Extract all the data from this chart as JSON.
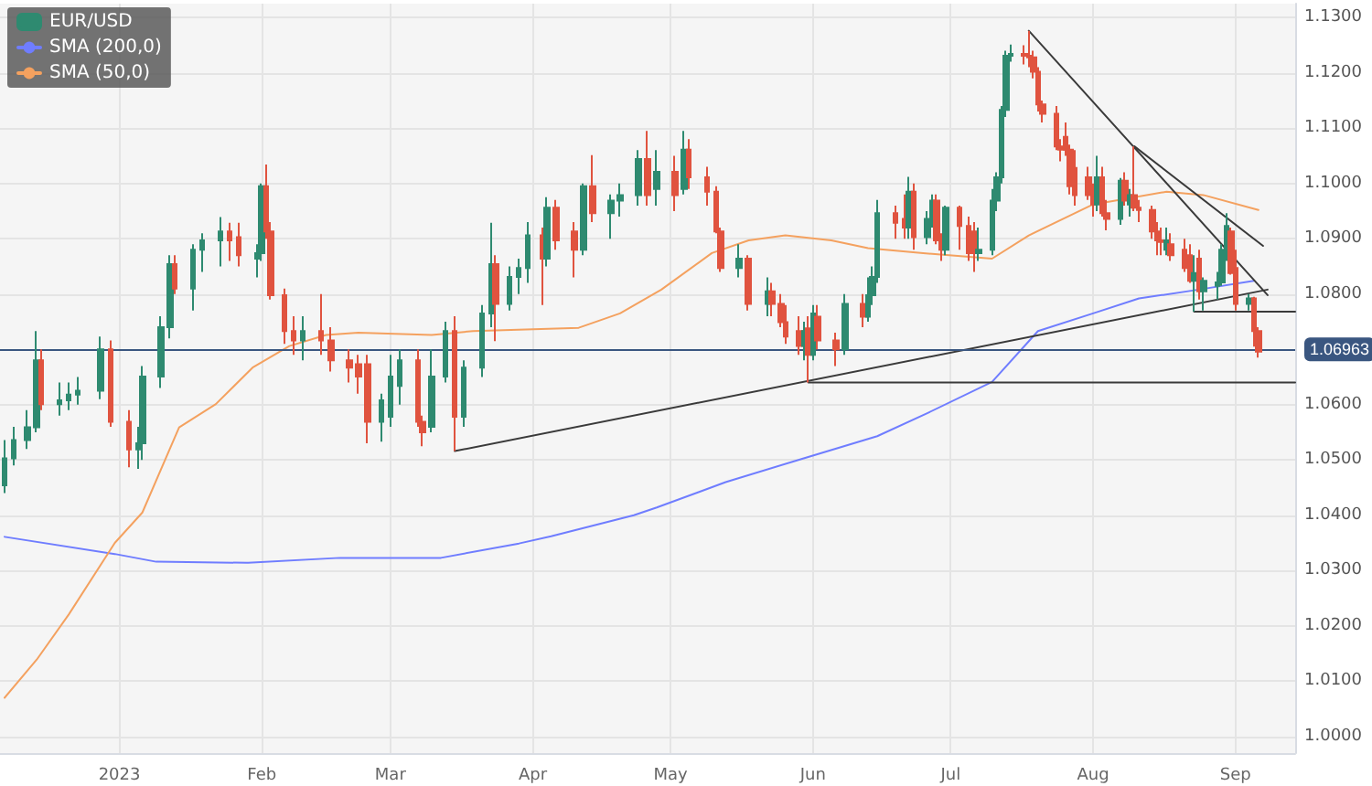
{
  "chart_data": {
    "type": "candlestick",
    "legend": "top left",
    "grid": true,
    "marker": "none",
    "line_style": "solid",
    "xlim": [
      "2022-12-06",
      "2023-09-14"
    ],
    "xticks": [
      {
        "value": "2023-01-01",
        "label": "2023"
      },
      {
        "value": "2023-02-01",
        "label": "Feb"
      },
      {
        "value": "2023-03-01",
        "label": "Mar"
      },
      {
        "value": "2023-04-01",
        "label": "Apr"
      },
      {
        "value": "2023-05-01",
        "label": "May"
      },
      {
        "value": "2023-06-01",
        "label": "Jun"
      },
      {
        "value": "2023-07-01",
        "label": "Jul"
      },
      {
        "value": "2023-08-01",
        "label": "Aug"
      },
      {
        "value": "2023-09-01",
        "label": "Sep"
      }
    ],
    "ylim": [
      0.997,
      1.1325
    ],
    "yticks": [
      {
        "value": 1.0,
        "label": "1.0000"
      },
      {
        "value": 1.01,
        "label": "1.0100"
      },
      {
        "value": 1.02,
        "label": "1.0200"
      },
      {
        "value": 1.03,
        "label": "1.0300"
      },
      {
        "value": 1.04,
        "label": "1.0400"
      },
      {
        "value": 1.05,
        "label": "1.0500"
      },
      {
        "value": 1.06,
        "label": "1.0600"
      },
      {
        "value": 1.07,
        "label": null
      },
      {
        "value": 1.08,
        "label": "1.0800"
      },
      {
        "value": 1.09,
        "label": "1.0900"
      },
      {
        "value": 1.1,
        "label": "1.1000"
      },
      {
        "value": 1.11,
        "label": "1.1100"
      },
      {
        "value": 1.12,
        "label": "1.1200"
      },
      {
        "value": 1.13,
        "label": "1.1300"
      }
    ],
    "ref_lines": [
      {
        "axis": "y",
        "value": 1.06963,
        "label": "1.06963",
        "color": "#3a5680"
      }
    ],
    "x": [
      "2022-12-07",
      "2022-12-09",
      "2022-12-12",
      "2022-12-14",
      "2022-12-15",
      "2022-12-19",
      "2022-12-21",
      "2022-12-23",
      "2022-12-28",
      "2022-12-30",
      "2023-01-03",
      "2023-01-05",
      "2023-01-06",
      "2023-01-10",
      "2023-01-12",
      "2023-01-13",
      "2023-01-17",
      "2023-01-19",
      "2023-01-23",
      "2023-01-25",
      "2023-01-27",
      "2023-01-31",
      "2023-02-01",
      "2023-02-02",
      "2023-02-03",
      "2023-02-06",
      "2023-02-08",
      "2023-02-10",
      "2023-02-14",
      "2023-02-16",
      "2023-02-20",
      "2023-02-22",
      "2023-02-24",
      "2023-02-27",
      "2023-03-01",
      "2023-03-03",
      "2023-03-07",
      "2023-03-08",
      "2023-03-10",
      "2023-03-13",
      "2023-03-15",
      "2023-03-17",
      "2023-03-21",
      "2023-03-23",
      "2023-03-24",
      "2023-03-27",
      "2023-03-29",
      "2023-03-31",
      "2023-04-03",
      "2023-04-04",
      "2023-04-06",
      "2023-04-10",
      "2023-04-12",
      "2023-04-14",
      "2023-04-18",
      "2023-04-20",
      "2023-04-24",
      "2023-04-26",
      "2023-04-28",
      "2023-05-02",
      "2023-05-04",
      "2023-05-05",
      "2023-05-09",
      "2023-05-11",
      "2023-05-12",
      "2023-05-16",
      "2023-05-18",
      "2023-05-22",
      "2023-05-23",
      "2023-05-25",
      "2023-05-26",
      "2023-05-29",
      "2023-05-30",
      "2023-05-31",
      "2023-06-01",
      "2023-06-02",
      "2023-06-06",
      "2023-06-08",
      "2023-06-12",
      "2023-06-13",
      "2023-06-14",
      "2023-06-15",
      "2023-06-19",
      "2023-06-21",
      "2023-06-22",
      "2023-06-23",
      "2023-06-26",
      "2023-06-27",
      "2023-06-28",
      "2023-06-29",
      "2023-06-30",
      "2023-07-03",
      "2023-07-05",
      "2023-07-06",
      "2023-07-07",
      "2023-07-10",
      "2023-07-11",
      "2023-07-12",
      "2023-07-13",
      "2023-07-14",
      "2023-07-17",
      "2023-07-18",
      "2023-07-19",
      "2023-07-20",
      "2023-07-21",
      "2023-07-24",
      "2023-07-25",
      "2023-07-26",
      "2023-07-27",
      "2023-07-28",
      "2023-07-31",
      "2023-08-01",
      "2023-08-02",
      "2023-08-03",
      "2023-08-04",
      "2023-08-07",
      "2023-08-08",
      "2023-08-09",
      "2023-08-10",
      "2023-08-11",
      "2023-08-14",
      "2023-08-15",
      "2023-08-16",
      "2023-08-17",
      "2023-08-18",
      "2023-08-21",
      "2023-08-22",
      "2023-08-23",
      "2023-08-24",
      "2023-08-25",
      "2023-08-28",
      "2023-08-29",
      "2023-08-30",
      "2023-08-31",
      "2023-09-01",
      "2023-09-04",
      "2023-09-05",
      "2023-09-06"
    ],
    "series": [
      {
        "name": "EUR/USD",
        "ohlc": [
          [
            1.0454,
            1.0536,
            1.044,
            1.0503
          ],
          [
            1.0503,
            1.056,
            1.049,
            1.0536
          ],
          [
            1.0536,
            1.059,
            1.052,
            1.0559
          ],
          [
            1.0559,
            1.0733,
            1.055,
            1.068
          ],
          [
            1.068,
            1.07,
            1.059,
            1.0601
          ],
          [
            1.0601,
            1.064,
            1.058,
            1.0608
          ],
          [
            1.0608,
            1.064,
            1.059,
            1.0618
          ],
          [
            1.0618,
            1.065,
            1.06,
            1.0625
          ],
          [
            1.0625,
            1.0723,
            1.061,
            1.07
          ],
          [
            1.07,
            1.0716,
            1.056,
            1.0569
          ],
          [
            1.0569,
            1.059,
            1.0487,
            1.0519
          ],
          [
            1.0519,
            1.056,
            1.0484,
            1.053
          ],
          [
            1.053,
            1.067,
            1.05,
            1.0651
          ],
          [
            1.0651,
            1.076,
            1.063,
            1.074
          ],
          [
            1.074,
            1.087,
            1.072,
            1.0854
          ],
          [
            1.0854,
            1.087,
            1.08,
            1.081
          ],
          [
            1.081,
            1.089,
            1.077,
            1.088
          ],
          [
            1.088,
            1.091,
            1.084,
            1.0897
          ],
          [
            1.0897,
            1.0939,
            1.085,
            1.0913
          ],
          [
            1.0913,
            1.0929,
            1.086,
            1.0897
          ],
          [
            1.0903,
            1.0929,
            1.085,
            1.087
          ],
          [
            1.0864,
            1.089,
            1.083,
            1.0874
          ],
          [
            1.0874,
            1.1,
            1.086,
            1.0995
          ],
          [
            1.0995,
            1.1034,
            1.09,
            1.0913
          ],
          [
            1.0913,
            1.093,
            1.079,
            1.0798
          ],
          [
            1.0798,
            1.081,
            1.071,
            1.0733
          ],
          [
            1.0733,
            1.076,
            1.069,
            1.0716
          ],
          [
            1.0716,
            1.076,
            1.068,
            1.0733
          ],
          [
            1.0733,
            1.08,
            1.069,
            1.0716
          ],
          [
            1.0716,
            1.074,
            1.066,
            1.068
          ],
          [
            1.068,
            1.07,
            1.064,
            1.0667
          ],
          [
            1.0673,
            1.069,
            1.062,
            1.0651
          ],
          [
            1.0673,
            1.069,
            1.053,
            1.0569
          ],
          [
            1.0569,
            1.062,
            1.0533,
            1.0608
          ],
          [
            1.0578,
            1.069,
            1.056,
            1.0651
          ],
          [
            1.0634,
            1.07,
            1.06,
            1.068
          ],
          [
            1.068,
            1.07,
            1.056,
            1.0569
          ],
          [
            1.0569,
            1.058,
            1.0525,
            1.055
          ],
          [
            1.056,
            1.07,
            1.055,
            1.0651
          ],
          [
            1.0651,
            1.075,
            1.064,
            1.0733
          ],
          [
            1.0733,
            1.076,
            1.0516,
            1.0578
          ],
          [
            1.0578,
            1.068,
            1.056,
            1.0667
          ],
          [
            1.0667,
            1.078,
            1.065,
            1.0765
          ],
          [
            1.0765,
            1.0929,
            1.074,
            1.0854
          ],
          [
            1.0854,
            1.087,
            1.0715,
            1.0782
          ],
          [
            1.0782,
            1.085,
            1.077,
            1.0831
          ],
          [
            1.0831,
            1.0864,
            1.08,
            1.0847
          ],
          [
            1.0847,
            1.093,
            1.082,
            1.0906
          ],
          [
            1.0906,
            1.092,
            1.078,
            1.0864
          ],
          [
            1.0864,
            1.0975,
            1.085,
            1.0956
          ],
          [
            1.0956,
            1.097,
            1.088,
            1.0897
          ],
          [
            1.0913,
            1.093,
            1.083,
            1.088
          ],
          [
            1.088,
            1.1,
            1.087,
            1.0995
          ],
          [
            1.0995,
            1.1051,
            1.093,
            1.0946
          ],
          [
            1.0946,
            1.098,
            1.09,
            1.0969
          ],
          [
            1.0969,
            1.1,
            1.094,
            1.0979
          ],
          [
            1.0979,
            1.106,
            1.096,
            1.1044
          ],
          [
            1.1044,
            1.1095,
            1.096,
            1.0979
          ],
          [
            1.099,
            1.106,
            1.096,
            1.1021
          ],
          [
            1.1021,
            1.105,
            1.095,
            1.0979
          ],
          [
            1.099,
            1.1095,
            1.098,
            1.1061
          ],
          [
            1.1061,
            1.108,
            1.099,
            1.1011
          ],
          [
            1.1011,
            1.103,
            1.096,
            1.0985
          ],
          [
            1.0985,
            1.0995,
            1.091,
            1.0913
          ],
          [
            1.0913,
            1.092,
            1.084,
            1.0847
          ],
          [
            1.0847,
            1.089,
            1.083,
            1.0864
          ],
          [
            1.0864,
            1.087,
            1.077,
            1.0782
          ],
          [
            1.0782,
            1.083,
            1.076,
            1.0805
          ],
          [
            1.0805,
            1.082,
            1.076,
            1.0782
          ],
          [
            1.0782,
            1.08,
            1.074,
            1.0749
          ],
          [
            1.0749,
            1.078,
            1.071,
            1.0723
          ],
          [
            1.0733,
            1.076,
            1.069,
            1.0706
          ],
          [
            1.0706,
            1.075,
            1.068,
            1.0733
          ],
          [
            1.0738,
            1.076,
            1.064,
            1.069
          ],
          [
            1.069,
            1.078,
            1.068,
            1.0765
          ],
          [
            1.0759,
            1.078,
            1.07,
            1.0716
          ],
          [
            1.0716,
            1.073,
            1.067,
            1.07
          ],
          [
            1.07,
            1.08,
            1.069,
            1.0782
          ],
          [
            1.0782,
            1.08,
            1.074,
            1.0759
          ],
          [
            1.0759,
            1.083,
            1.075,
            1.0798
          ],
          [
            1.0798,
            1.085,
            1.078,
            1.0831
          ],
          [
            1.0831,
            1.097,
            1.082,
            1.0946
          ],
          [
            1.0946,
            1.096,
            1.09,
            1.0929
          ],
          [
            1.0936,
            1.098,
            1.09,
            1.092
          ],
          [
            1.092,
            1.1012,
            1.09,
            1.0985
          ],
          [
            1.0985,
            1.1,
            1.088,
            1.0903
          ],
          [
            1.0903,
            1.095,
            1.089,
            1.0936
          ],
          [
            1.0936,
            1.098,
            1.092,
            1.0969
          ],
          [
            1.0969,
            1.098,
            1.089,
            1.0897
          ],
          [
            1.0897,
            1.091,
            1.086,
            1.088
          ],
          [
            1.088,
            1.096,
            1.087,
            1.0956
          ],
          [
            1.0956,
            1.096,
            1.088,
            1.0923
          ],
          [
            1.0923,
            1.094,
            1.086,
            1.0874
          ],
          [
            1.0913,
            1.093,
            1.084,
            1.0874
          ],
          [
            1.0874,
            1.092,
            1.086,
            1.088
          ],
          [
            1.088,
            1.099,
            1.087,
            1.0969
          ],
          [
            1.0969,
            1.102,
            1.095,
            1.1011
          ],
          [
            1.1011,
            1.114,
            1.1,
            1.1133
          ],
          [
            1.1133,
            1.124,
            1.112,
            1.1231
          ],
          [
            1.1231,
            1.1251,
            1.122,
            1.1234
          ],
          [
            1.1234,
            1.125,
            1.1215,
            1.1231
          ],
          [
            1.1231,
            1.1276,
            1.121,
            1.1228
          ],
          [
            1.1228,
            1.124,
            1.119,
            1.1202
          ],
          [
            1.1202,
            1.121,
            1.113,
            1.1143
          ],
          [
            1.1143,
            1.115,
            1.111,
            1.1126
          ],
          [
            1.1126,
            1.114,
            1.106,
            1.1067
          ],
          [
            1.1067,
            1.108,
            1.104,
            1.1061
          ],
          [
            1.1084,
            1.111,
            1.105,
            1.1061
          ],
          [
            1.1061,
            1.107,
            1.098,
            1.0995
          ],
          [
            1.1028,
            1.106,
            1.096,
            1.0979
          ],
          [
            1.1011,
            1.103,
            1.097,
            1.0979
          ],
          [
            1.0979,
            1.1,
            1.094,
            1.0962
          ],
          [
            1.0962,
            1.105,
            1.095,
            1.1011
          ],
          [
            1.1011,
            1.103,
            1.094,
            1.0946
          ],
          [
            1.0946,
            1.097,
            1.0915,
            1.0936
          ],
          [
            1.0936,
            1.101,
            1.0925,
            1.1005
          ],
          [
            1.1005,
            1.102,
            1.096,
            1.0969
          ],
          [
            1.0962,
            1.099,
            1.094,
            1.0979
          ],
          [
            1.0979,
            1.1067,
            1.095,
            1.0956
          ],
          [
            1.0956,
            1.097,
            1.093,
            1.0952
          ],
          [
            1.0952,
            1.096,
            1.09,
            1.0913
          ],
          [
            1.0913,
            1.093,
            1.087,
            1.0897
          ],
          [
            1.0897,
            1.092,
            1.087,
            1.0894
          ],
          [
            1.088,
            1.092,
            1.087,
            1.0897
          ],
          [
            1.089,
            1.091,
            1.086,
            1.087
          ],
          [
            1.088,
            1.09,
            1.084,
            1.0847
          ],
          [
            1.087,
            1.089,
            1.082,
            1.0824
          ],
          [
            1.0824,
            1.087,
            1.0768,
            1.0838
          ],
          [
            1.0864,
            1.088,
            1.079,
            1.0805
          ],
          [
            1.0805,
            1.083,
            1.077,
            1.0824
          ],
          [
            1.0815,
            1.084,
            1.079,
            1.0821
          ],
          [
            1.0821,
            1.089,
            1.0815,
            1.088
          ],
          [
            1.088,
            1.0946,
            1.086,
            1.0923
          ],
          [
            1.0913,
            1.092,
            1.0835,
            1.0838
          ],
          [
            1.0847,
            1.088,
            1.077,
            1.0782
          ],
          [
            1.0782,
            1.08,
            1.077,
            1.0792
          ],
          [
            1.0792,
            1.0795,
            1.0705,
            1.0733
          ],
          [
            1.0733,
            1.074,
            1.0685,
            1.0696
          ]
        ]
      },
      {
        "type": "line",
        "name": "SMA (200,0)",
        "color": "#6f7dff",
        "x": [
          "2022-12-07",
          "2022-12-31",
          "2023-01-09",
          "2023-01-29",
          "2023-02-18",
          "2023-03-12",
          "2023-03-29",
          "2023-04-05",
          "2023-04-23",
          "2023-04-28",
          "2023-05-13",
          "2023-05-30",
          "2023-06-15",
          "2023-06-26",
          "2023-07-10",
          "2023-07-20",
          "2023-08-01",
          "2023-08-11",
          "2023-08-24",
          "2023-09-05"
        ],
        "values": [
          1.0361,
          1.033,
          1.0316,
          1.0314,
          1.0323,
          1.0323,
          1.0349,
          1.0362,
          1.04,
          1.0414,
          1.046,
          1.0503,
          1.0543,
          1.0585,
          1.0641,
          1.0733,
          1.0765,
          1.0792,
          1.0808,
          1.0824
        ]
      },
      {
        "type": "line",
        "name": "SMA (50,0)",
        "color": "#f4a15f",
        "x": [
          "2022-12-07",
          "2022-12-14",
          "2022-12-21",
          "2022-12-31",
          "2023-01-06",
          "2023-01-14",
          "2023-01-22",
          "2023-01-30",
          "2023-02-07",
          "2023-02-15",
          "2023-02-22",
          "2023-03-10",
          "2023-03-19",
          "2023-04-11",
          "2023-04-20",
          "2023-04-29",
          "2023-05-10",
          "2023-05-18",
          "2023-05-26",
          "2023-06-05",
          "2023-06-13",
          "2023-06-25",
          "2023-07-10",
          "2023-07-18",
          "2023-08-01",
          "2023-08-17",
          "2023-08-25",
          "2023-09-06"
        ],
        "values": [
          1.007,
          1.0139,
          1.0221,
          1.035,
          1.0405,
          1.0559,
          1.0601,
          1.0667,
          1.0706,
          1.0726,
          1.073,
          1.0726,
          1.0733,
          1.0739,
          1.0765,
          1.0808,
          1.0874,
          1.0897,
          1.0906,
          1.0897,
          1.0883,
          1.0874,
          1.0864,
          1.0906,
          1.0962,
          1.0985,
          1.0979,
          1.0952
        ]
      },
      {
        "type": "line",
        "color": "#3a3a3a",
        "x": [
          "2023-03-15",
          "2023-09-08"
        ],
        "values": [
          1.0516,
          1.0808
        ]
      },
      {
        "type": "line",
        "color": "#3a3a3a",
        "x": [
          "2023-07-18",
          "2023-09-08"
        ],
        "values": [
          1.1276,
          1.0798
        ]
      },
      {
        "type": "line",
        "color": "#3a3a3a",
        "x": [
          "2023-08-10",
          "2023-09-07"
        ],
        "values": [
          1.1067,
          1.0887
        ]
      },
      {
        "type": "line",
        "color": "#3a3a3a",
        "x": [
          "2023-05-31",
          "2023-09-14"
        ],
        "values": [
          1.064,
          1.064
        ]
      },
      {
        "type": "line",
        "color": "#3a3a3a",
        "x": [
          "2023-08-23",
          "2023-09-14"
        ],
        "values": [
          1.0768,
          1.0768
        ]
      }
    ]
  }
}
